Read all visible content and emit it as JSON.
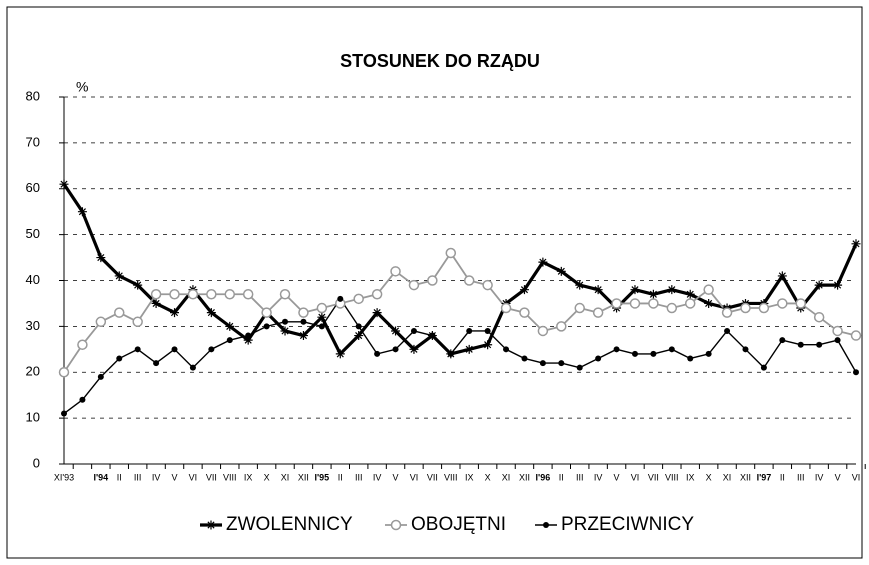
{
  "chart_data": {
    "type": "line",
    "title": "STOSUNEK DO RZĄDU",
    "y_label": "%",
    "categories": [
      "XI'93",
      null,
      "I'94",
      "II",
      "III",
      "IV",
      "V",
      "VI",
      "VII",
      "VIII",
      "IX",
      "X",
      "XI",
      "XII",
      "I'95",
      "II",
      "III",
      "IV",
      "V",
      "VI",
      "VII",
      "VIII",
      "IX",
      "X",
      "XI",
      "XII",
      "I'96",
      "II",
      "III",
      "IV",
      "V",
      "VI",
      "VII",
      "VIII",
      "IX",
      "X",
      "XI",
      "XII",
      "I'97",
      "II",
      "III",
      "IV",
      "V",
      "VI"
    ],
    "series": [
      {
        "name": "ZWOLENNICY",
        "color": "#000000",
        "values": [
          61,
          55,
          45,
          41,
          39,
          35,
          33,
          38,
          33,
          30,
          27,
          33,
          29,
          28,
          32,
          24,
          28,
          33,
          29,
          25,
          28,
          24,
          25,
          26,
          35,
          38,
          44,
          42,
          39,
          38,
          34,
          38,
          37,
          38,
          37,
          35,
          34,
          35,
          35,
          41,
          34,
          39,
          39,
          48
        ]
      },
      {
        "name": "OBOJĘTNI",
        "color": "#999999",
        "values": [
          20,
          26,
          31,
          33,
          31,
          37,
          37,
          37,
          37,
          37,
          37,
          33,
          37,
          33,
          34,
          35,
          36,
          37,
          42,
          39,
          40,
          46,
          40,
          39,
          34,
          33,
          29,
          30,
          34,
          33,
          35,
          35,
          35,
          34,
          35,
          38,
          33,
          34,
          34,
          35,
          35,
          32,
          29,
          28
        ]
      },
      {
        "name": "PRZECIWNICY",
        "color": "#000000",
        "values": [
          11,
          14,
          19,
          23,
          25,
          22,
          25,
          21,
          25,
          27,
          28,
          30,
          31,
          31,
          30,
          36,
          30,
          24,
          25,
          29,
          28,
          24,
          29,
          29,
          25,
          23,
          22,
          22,
          21,
          23,
          25,
          24,
          24,
          25,
          23,
          24,
          29,
          25,
          21,
          27,
          26,
          26,
          27,
          20
        ]
      }
    ],
    "ylim": [
      0,
      80
    ],
    "yticks": [
      0,
      10,
      20,
      30,
      40,
      50,
      60,
      70,
      80
    ],
    "grid": true
  }
}
